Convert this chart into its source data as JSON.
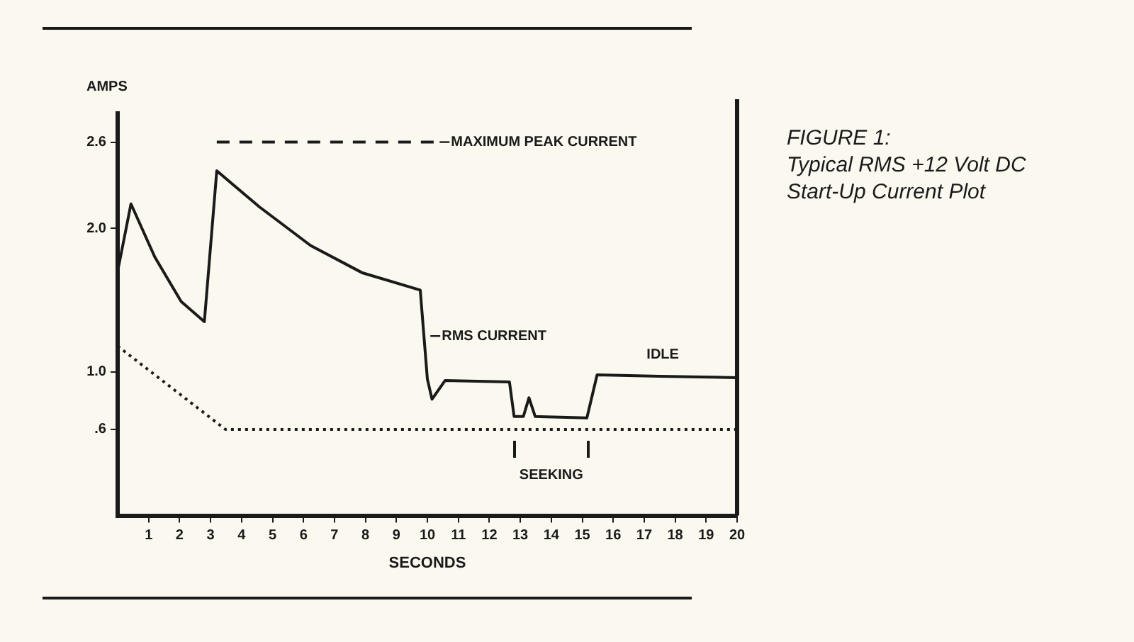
{
  "chart_data": {
    "type": "line",
    "title": "FIGURE 1:",
    "subtitle": "Typical RMS +12 Volt DC Start-Up Current Plot",
    "xlabel": "SECONDS",
    "ylabel": "AMPS",
    "xlim": [
      0,
      20
    ],
    "xticks": [
      1,
      2,
      3,
      4,
      5,
      6,
      7,
      8,
      9,
      10,
      11,
      12,
      13,
      14,
      15,
      16,
      17,
      18,
      19,
      20
    ],
    "ylim": [
      0,
      2.8
    ],
    "yticks": [
      {
        "value": 0.6,
        "label": ".6"
      },
      {
        "value": 1.0,
        "label": "1.0"
      },
      {
        "value": 2.0,
        "label": "2.0"
      },
      {
        "value": 2.6,
        "label": "2.6"
      }
    ],
    "grid": false,
    "legend": false,
    "marker": "none",
    "series": [
      {
        "color": "#1a1a1a",
        "line_style": "solid",
        "x": [
          0,
          0.43,
          1.2,
          2.05,
          2.8,
          3.2,
          4.57,
          6.23,
          7.9,
          9.77,
          10.0,
          10.15,
          10.57,
          12.65,
          12.8,
          13.1,
          13.28,
          13.48,
          15.15,
          15.48,
          17.5,
          20
        ],
        "values": [
          1.7,
          2.17,
          1.8,
          1.49,
          1.35,
          2.4,
          2.15,
          1.88,
          1.69,
          1.57,
          0.95,
          0.81,
          0.94,
          0.93,
          0.69,
          0.69,
          0.82,
          0.69,
          0.68,
          0.98,
          0.97,
          0.96
        ]
      },
      {
        "color": "#1a1a1a",
        "line_style": "dotted",
        "x": [
          0,
          3.48,
          20
        ],
        "values": [
          1.18,
          0.6,
          0.6
        ]
      },
      {
        "color": "#1a1a1a",
        "line_style": "dashed",
        "x": [
          3.2,
          10.35
        ],
        "values": [
          2.6,
          2.6
        ]
      }
    ],
    "annotations": [
      {
        "text": "MAXIMUM PEAK CURRENT",
        "x": 10.35,
        "y": 2.6
      },
      {
        "text": "RMS CURRENT",
        "x": 10.05,
        "y": 1.25
      },
      "IDLE",
      "SEEKING"
    ]
  }
}
